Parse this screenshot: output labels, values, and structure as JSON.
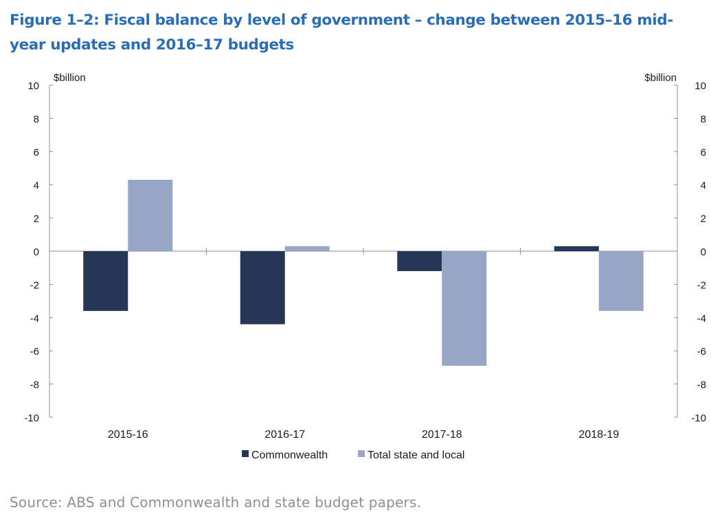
{
  "title": "Figure 1–2: Fiscal balance by level of government – change between 2015–16 mid-year updates and 2016–17 budgets",
  "source": "Source: ABS and Commonwealth and state budget papers.",
  "chart_data": {
    "type": "bar",
    "title": "Figure 1–2: Fiscal balance by level of government – change between 2015–16 mid-year updates and 2016–17 budgets",
    "xlabel": "",
    "ylabel": "$billion",
    "ylabel_right": "$billion",
    "ylim": [
      -10,
      10
    ],
    "yticks": [
      10,
      8,
      6,
      4,
      2,
      0,
      -2,
      -4,
      -6,
      -8,
      -10
    ],
    "categories": [
      "2015-16",
      "2016-17",
      "2017-18",
      "2018-19"
    ],
    "series": [
      {
        "name": "Commonwealth",
        "color": "#253659",
        "values": [
          -3.6,
          -4.4,
          -1.2,
          0.3
        ]
      },
      {
        "name": "Total state and local",
        "color": "#97a5c7",
        "values": [
          4.3,
          0.3,
          -6.9,
          -3.6
        ]
      }
    ],
    "legend": "bottom-center",
    "grid": false
  }
}
